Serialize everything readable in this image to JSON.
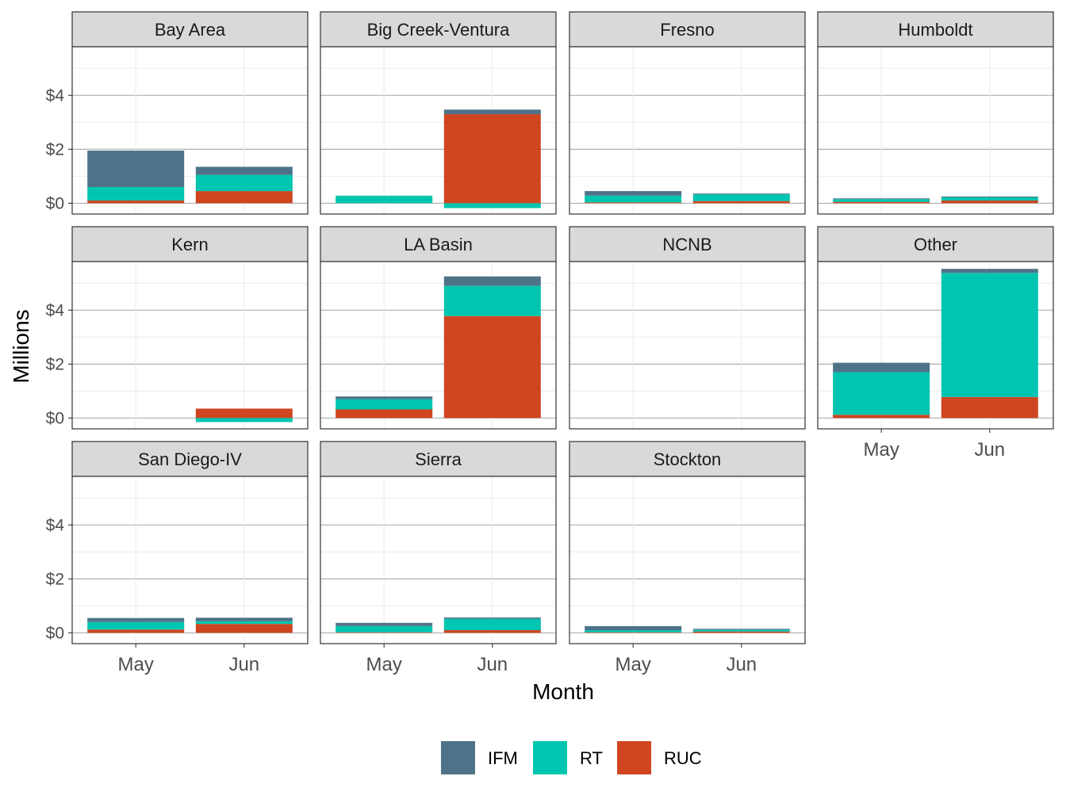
{
  "chart_data": {
    "type": "bar",
    "stacked": true,
    "facet_layout": "4 columns, 3 rows, fixed y scale",
    "xlabel": "Month",
    "ylabel": "Millions",
    "categories": [
      "May",
      "Jun"
    ],
    "ylim": [
      -0.4,
      5.8
    ],
    "yticks": [
      0,
      2,
      4
    ],
    "ytick_labels": [
      "$0",
      "$2",
      "$4"
    ],
    "grid": true,
    "legend_position": "bottom",
    "series_order": [
      "IFM",
      "RT",
      "RUC"
    ],
    "colors": {
      "IFM": "#4e7389",
      "RT": "#00c5b0",
      "RUC": "#cf4520"
    },
    "facets": [
      {
        "name": "Bay Area",
        "data": {
          "May": {
            "RUC": 0.1,
            "RT": 0.5,
            "IFM": 1.35
          },
          "Jun": {
            "RUC": 0.45,
            "RT": 0.6,
            "IFM": 0.3
          }
        }
      },
      {
        "name": "Big Creek-Ventura",
        "data": {
          "May": {
            "RUC": 0,
            "RT": 0.28,
            "IFM": 0
          },
          "Jun": {
            "RUC": 3.3,
            "RT": -0.18,
            "IFM": 0.17
          }
        }
      },
      {
        "name": "Fresno",
        "data": {
          "May": {
            "RUC": 0.03,
            "RT": 0.25,
            "IFM": 0.17
          },
          "Jun": {
            "RUC": 0.08,
            "RT": 0.25,
            "IFM": 0.03
          }
        }
      },
      {
        "name": "Humboldt",
        "data": {
          "May": {
            "RUC": 0.05,
            "RT": 0.1,
            "IFM": 0.03
          },
          "Jun": {
            "RUC": 0.1,
            "RT": 0.12,
            "IFM": 0.03
          }
        }
      },
      {
        "name": "Kern",
        "data": {
          "May": {
            "RUC": 0,
            "RT": 0,
            "IFM": 0
          },
          "Jun": {
            "RUC": 0.35,
            "RT": -0.15,
            "IFM": 0
          }
        }
      },
      {
        "name": "LA Basin",
        "data": {
          "May": {
            "RUC": 0.32,
            "RT": 0.38,
            "IFM": 0.1
          },
          "Jun": {
            "RUC": 3.78,
            "RT": 1.12,
            "IFM": 0.35
          }
        }
      },
      {
        "name": "NCNB",
        "data": {
          "May": {
            "RUC": 0,
            "RT": 0,
            "IFM": 0
          },
          "Jun": {
            "RUC": 0,
            "RT": 0,
            "IFM": 0
          }
        }
      },
      {
        "name": "Other",
        "data": {
          "May": {
            "RUC": 0.12,
            "RT": 1.58,
            "IFM": 0.35
          },
          "Jun": {
            "RUC": 0.78,
            "RT": 4.6,
            "IFM": 0.15
          }
        }
      },
      {
        "name": "San Diego-IV",
        "data": {
          "May": {
            "RUC": 0.12,
            "RT": 0.28,
            "IFM": 0.15
          },
          "Jun": {
            "RUC": 0.33,
            "RT": 0.1,
            "IFM": 0.13
          }
        }
      },
      {
        "name": "Sierra",
        "data": {
          "May": {
            "RUC": 0.02,
            "RT": 0.23,
            "IFM": 0.12
          },
          "Jun": {
            "RUC": 0.1,
            "RT": 0.42,
            "IFM": 0.05
          }
        }
      },
      {
        "name": "Stockton",
        "data": {
          "May": {
            "RUC": 0.02,
            "RT": 0.08,
            "IFM": 0.15
          },
          "Jun": {
            "RUC": 0.05,
            "RT": 0.07,
            "IFM": 0.03
          }
        }
      }
    ]
  }
}
